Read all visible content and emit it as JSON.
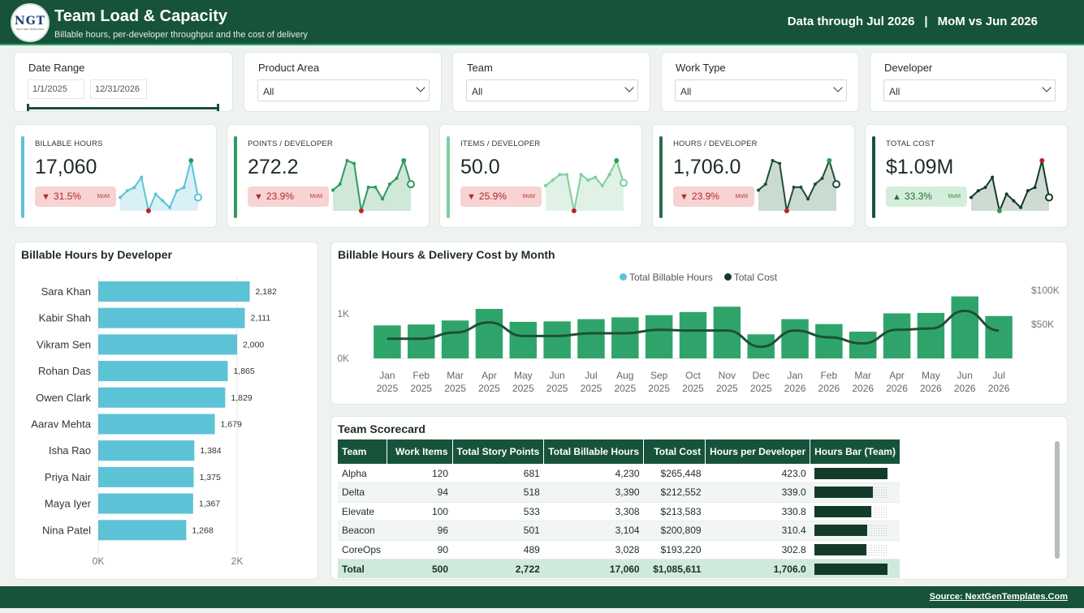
{
  "header": {
    "logo_text": "NGT",
    "logo_subtext": "NEXT GEN TEMPLATES",
    "title": "Team Load & Capacity",
    "subtitle": "Billable hours, per-developer throughput and the cost of delivery",
    "data_through": "Data through Jul 2026",
    "separator": "|",
    "comparison": "MoM vs Jun 2026"
  },
  "filters": {
    "date_range": {
      "label": "Date Range",
      "start": "1/1/2025",
      "end": "12/31/2026"
    },
    "product_area": {
      "label": "Product Area",
      "value": "All"
    },
    "team": {
      "label": "Team",
      "value": "All"
    },
    "work_type": {
      "label": "Work Type",
      "value": "All"
    },
    "developer": {
      "label": "Developer",
      "value": "All"
    }
  },
  "kpis": [
    {
      "label": "BILLABLE HOURS",
      "value": "17,060",
      "change": "31.5%",
      "direction": "down",
      "mom": "MoM",
      "accent": "#5cc3d6",
      "fill": "#d9f1f6",
      "line": "#5cc3d6",
      "spark": [
        8,
        10,
        11,
        14,
        4,
        9,
        7,
        5,
        10,
        11,
        19,
        8
      ],
      "low_index": 4,
      "high_index": 10
    },
    {
      "label": "POINTS / DEVELOPER",
      "value": "272.2",
      "change": "23.9%",
      "direction": "down",
      "mom": "MoM",
      "accent": "#2f9a5e",
      "fill": "#cfe8d7",
      "line": "#2f9a5e",
      "spark": [
        8,
        10,
        18,
        17,
        1,
        9,
        9,
        5,
        10,
        12,
        18,
        10
      ],
      "low_index": 4,
      "high_index": 10
    },
    {
      "label": "ITEMS / DEVELOPER",
      "value": "50.0",
      "change": "25.9%",
      "direction": "down",
      "mom": "MoM",
      "accent": "#7fcf9a",
      "fill": "#dff2e5",
      "line": "#7fcf9a",
      "spark": [
        10,
        12,
        14,
        14,
        1,
        14,
        12,
        13,
        10,
        14,
        19,
        11
      ],
      "low_index": 4,
      "high_index": 10
    },
    {
      "label": "HOURS / DEVELOPER",
      "value": "1,706.0",
      "change": "23.9%",
      "direction": "down",
      "mom": "MoM",
      "accent": "#2a6e4a",
      "fill": "#c9dccf",
      "line": "#1f4f37",
      "spark": [
        8,
        10,
        18,
        17,
        1,
        9,
        9,
        5,
        10,
        12,
        18,
        10
      ],
      "low_index": 4,
      "high_index": 10
    },
    {
      "label": "TOTAL COST",
      "value": "$1.09M",
      "change": "33.3%",
      "direction": "up",
      "mom": "MoM",
      "accent": "#17533a",
      "fill": "#cddbd2",
      "line": "#143b2a",
      "spark": [
        8,
        10,
        11,
        14,
        4,
        9,
        7,
        5,
        10,
        11,
        19,
        8
      ],
      "low_index": 4,
      "high_index": 10
    }
  ],
  "developer_chart": {
    "title": "Billable Hours by Developer",
    "bar_color": "#5cc3d6",
    "developers": [
      {
        "name": "Sara Khan",
        "hours": 2182,
        "label": "2,182"
      },
      {
        "name": "Kabir Shah",
        "hours": 2111,
        "label": "2,111"
      },
      {
        "name": "Vikram Sen",
        "hours": 2000,
        "label": "2,000"
      },
      {
        "name": "Rohan Das",
        "hours": 1865,
        "label": "1,865"
      },
      {
        "name": "Owen Clark",
        "hours": 1829,
        "label": "1,829"
      },
      {
        "name": "Aarav Mehta",
        "hours": 1679,
        "label": "1,679"
      },
      {
        "name": "Isha Rao",
        "hours": 1384,
        "label": "1,384"
      },
      {
        "name": "Priya Nair",
        "hours": 1375,
        "label": "1,375"
      },
      {
        "name": "Maya Iyer",
        "hours": 1367,
        "label": "1,367"
      },
      {
        "name": "Nina Patel",
        "hours": 1268,
        "label": "1,268"
      }
    ],
    "x_ticks": [
      "0K",
      "2K"
    ],
    "x_max": 2000
  },
  "monthly_chart": {
    "title": "Billable Hours & Delivery Cost by Month",
    "legend": [
      {
        "label": "Total Billable Hours",
        "color": "#5cc3d6"
      },
      {
        "label": "Total Cost",
        "color": "#143b2a"
      }
    ],
    "bar_color": "#2fa46a",
    "line_color": "#1f4f37",
    "months": [
      "Jan",
      "Feb",
      "Mar",
      "Apr",
      "May",
      "Jun",
      "Jul",
      "Aug",
      "Sep",
      "Oct",
      "Nov",
      "Dec",
      "Jan",
      "Feb",
      "Mar",
      "Apr",
      "May",
      "Jun",
      "Jul"
    ],
    "years": [
      "2025",
      "2025",
      "2025",
      "2025",
      "2025",
      "2025",
      "2025",
      "2025",
      "2025",
      "2025",
      "2025",
      "2025",
      "2026",
      "2026",
      "2026",
      "2026",
      "2026",
      "2026",
      "2026"
    ],
    "hours": [
      740,
      760,
      850,
      1110,
      820,
      830,
      880,
      920,
      970,
      1040,
      1160,
      540,
      880,
      770,
      600,
      1010,
      1020,
      1390,
      950
    ],
    "cost": [
      29000,
      29000,
      38000,
      53000,
      33000,
      33000,
      37000,
      37000,
      42000,
      41000,
      41000,
      17000,
      41000,
      31000,
      22000,
      42000,
      44000,
      70000,
      41000
    ],
    "y_left_ticks": [
      "0K",
      "1K"
    ],
    "y_left_max": 1600,
    "y_right_ticks": [
      "$50K",
      "$100K"
    ],
    "y_right_max": 105000
  },
  "scorecard": {
    "title": "Team Scorecard",
    "columns": [
      "Team",
      "Work Items",
      "Total Story Points",
      "Total Billable Hours",
      "Total Cost",
      "Hours per Developer",
      "Hours Bar (Team)"
    ],
    "rows": [
      {
        "team": "Alpha",
        "items": "120",
        "points": "681",
        "hours": "4,230",
        "cost": "$265,448",
        "hpd": "423.0",
        "bar": 1.0
      },
      {
        "team": "Delta",
        "items": "94",
        "points": "518",
        "hours": "3,390",
        "cost": "$212,552",
        "hpd": "339.0",
        "bar": 0.8
      },
      {
        "team": "Elevate",
        "items": "100",
        "points": "533",
        "hours": "3,308",
        "cost": "$213,583",
        "hpd": "330.8",
        "bar": 0.78
      },
      {
        "team": "Beacon",
        "items": "96",
        "points": "501",
        "hours": "3,104",
        "cost": "$200,809",
        "hpd": "310.4",
        "bar": 0.73
      },
      {
        "team": "CoreOps",
        "items": "90",
        "points": "489",
        "hours": "3,028",
        "cost": "$193,220",
        "hpd": "302.8",
        "bar": 0.71
      }
    ],
    "total": {
      "team": "Total",
      "items": "500",
      "points": "2,722",
      "hours": "17,060",
      "cost": "$1,085,611",
      "hpd": "1,706.0",
      "bar": 1.0
    }
  },
  "footer": {
    "source": "Source: NextGenTemplates.Com"
  }
}
